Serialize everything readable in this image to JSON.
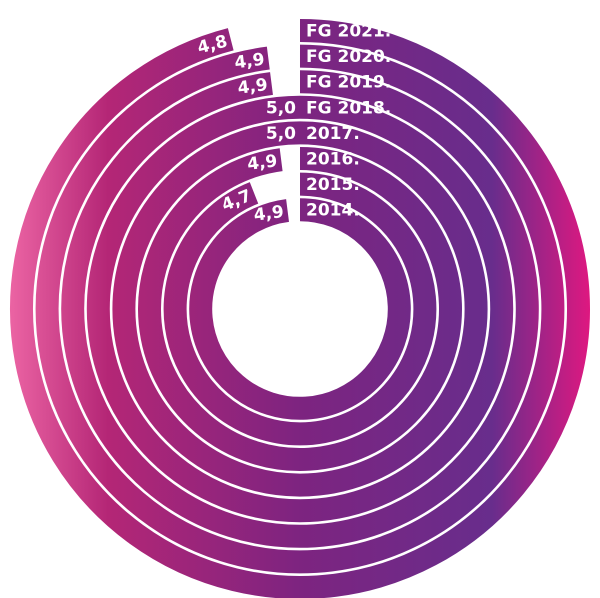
{
  "chart_data": {
    "type": "radial_bar",
    "categories": [
      "FG 2021.",
      "FG 2020.",
      "FG 2019.",
      "FG 2018.",
      "2017.",
      "2016.",
      "2015.",
      "2014."
    ],
    "values": [
      4.8,
      4.9,
      4.9,
      5.0,
      5.0,
      4.9,
      4.7,
      4.9
    ],
    "value_labels": [
      "4,8",
      "4,9",
      "4,9",
      "5,0",
      "5,0",
      "4,9",
      "4,7",
      "4,9"
    ],
    "ylim": [
      0,
      5
    ]
  }
}
